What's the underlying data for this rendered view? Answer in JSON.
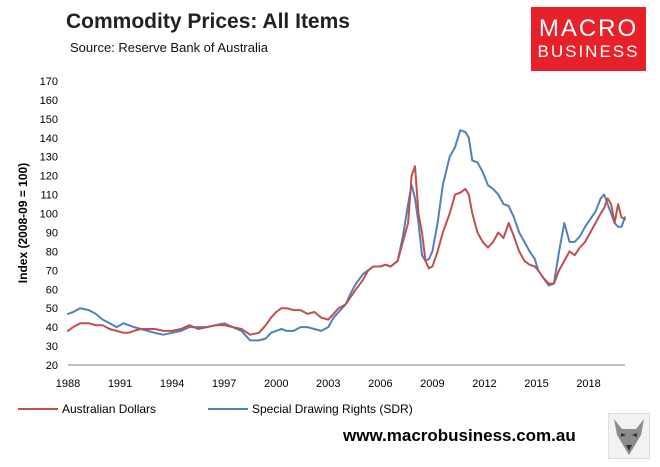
{
  "header": {
    "title": "Commodity Prices: All Items",
    "subtitle": "Source: Reserve Bank of Australia"
  },
  "logo": {
    "line1": "MACRO",
    "line2": "BUSINESS",
    "color": "#e8202a"
  },
  "footer": {
    "website": "www.macrobusiness.com.au"
  },
  "chart_data": {
    "type": "line",
    "title": "Commodity Prices: All Items",
    "ylabel": "Index (2008-09 = 100)",
    "xlabel": "",
    "xlim": [
      1988,
      2020.1
    ],
    "ylim": [
      20,
      170
    ],
    "y_ticks": [
      20,
      30,
      40,
      50,
      60,
      70,
      80,
      90,
      100,
      110,
      120,
      130,
      140,
      150,
      160,
      170
    ],
    "x_ticks": [
      1988,
      1991,
      1994,
      1997,
      2000,
      2003,
      2006,
      2009,
      2012,
      2015,
      2018
    ],
    "x_tick_labels": [
      "1988",
      "1991",
      "1994",
      "1997",
      "2000",
      "2003",
      "2006",
      "2009",
      "2012",
      "2015",
      "2018"
    ],
    "grid": false,
    "legend_position": "bottom-left",
    "series": [
      {
        "name": "Australian Dollars",
        "color": "#c0504d",
        "x": [
          1988,
          1988.3,
          1988.7,
          1989.2,
          1989.6,
          1990,
          1990.4,
          1990.8,
          1991.2,
          1991.5,
          1991.8,
          1992.2,
          1992.6,
          1993,
          1993.5,
          1994,
          1994.5,
          1995,
          1995.5,
          1996,
          1996.5,
          1997,
          1997.5,
          1998,
          1998.5,
          1999,
          1999.4,
          1999.7,
          2000,
          2000.3,
          2000.6,
          2001,
          2001.4,
          2001.8,
          2002.2,
          2002.6,
          2003,
          2003.3,
          2003.6,
          2004,
          2004.3,
          2004.6,
          2005,
          2005.3,
          2005.6,
          2006,
          2006.3,
          2006.6,
          2007,
          2007.3,
          2007.6,
          2007.8,
          2008,
          2008.2,
          2008.4,
          2008.6,
          2008.8,
          2009,
          2009.3,
          2009.6,
          2010,
          2010.3,
          2010.6,
          2010.9,
          2011.1,
          2011.3,
          2011.6,
          2011.9,
          2012.2,
          2012.5,
          2012.8,
          2013.1,
          2013.4,
          2013.7,
          2014,
          2014.3,
          2014.6,
          2014.9,
          2015.1,
          2015.4,
          2015.7,
          2016,
          2016.3,
          2016.6,
          2016.9,
          2017.2,
          2017.5,
          2017.8,
          2018.1,
          2018.4,
          2018.7,
          2018.9,
          2019.1,
          2019.3,
          2019.5,
          2019.7,
          2019.9,
          2020.1
        ],
        "values": [
          38,
          40,
          42,
          42,
          41,
          41,
          39,
          38,
          37,
          37,
          38,
          39,
          39,
          39,
          38,
          38,
          39,
          41,
          39,
          40,
          41,
          41,
          40,
          39,
          36,
          37,
          41,
          45,
          48,
          50,
          50,
          49,
          49,
          47,
          48,
          45,
          44,
          47,
          50,
          52,
          56,
          60,
          65,
          70,
          72,
          72,
          73,
          72,
          75,
          85,
          95,
          120,
          125,
          100,
          90,
          75,
          71,
          72,
          80,
          90,
          100,
          110,
          111,
          113,
          110,
          100,
          90,
          85,
          82,
          85,
          90,
          87,
          95,
          88,
          80,
          75,
          73,
          72,
          70,
          66,
          63,
          63,
          70,
          75,
          80,
          78,
          82,
          85,
          90,
          95,
          100,
          103,
          108,
          105,
          95,
          105,
          98,
          97
        ]
      },
      {
        "name": "Special Drawing Rights (SDR)",
        "color": "#4f81bd",
        "x": [
          1988,
          1988.3,
          1988.7,
          1989.2,
          1989.6,
          1990,
          1990.4,
          1990.8,
          1991.2,
          1991.5,
          1991.8,
          1992.2,
          1992.6,
          1993,
          1993.5,
          1994,
          1994.5,
          1995,
          1995.5,
          1996,
          1996.5,
          1997,
          1997.5,
          1998,
          1998.5,
          1999,
          1999.4,
          1999.7,
          2000,
          2000.3,
          2000.6,
          2001,
          2001.4,
          2001.8,
          2002.2,
          2002.6,
          2003,
          2003.3,
          2003.6,
          2004,
          2004.3,
          2004.6,
          2005,
          2005.3,
          2005.6,
          2006,
          2006.3,
          2006.6,
          2007,
          2007.3,
          2007.6,
          2007.8,
          2008,
          2008.2,
          2008.4,
          2008.6,
          2008.8,
          2009,
          2009.3,
          2009.6,
          2010,
          2010.3,
          2010.6,
          2010.9,
          2011.1,
          2011.3,
          2011.6,
          2011.9,
          2012.2,
          2012.5,
          2012.8,
          2013.1,
          2013.4,
          2013.7,
          2014,
          2014.3,
          2014.6,
          2014.9,
          2015.1,
          2015.4,
          2015.7,
          2016,
          2016.3,
          2016.6,
          2016.9,
          2017.2,
          2017.5,
          2017.8,
          2018.1,
          2018.4,
          2018.7,
          2018.9,
          2019.1,
          2019.3,
          2019.5,
          2019.7,
          2019.9,
          2020.1
        ],
        "values": [
          47,
          48,
          50,
          49,
          47,
          44,
          42,
          40,
          42,
          41,
          40,
          39,
          38,
          37,
          36,
          37,
          38,
          40,
          40,
          40,
          41,
          42,
          40,
          38,
          33,
          33,
          34,
          37,
          38,
          39,
          38,
          38,
          40,
          40,
          39,
          38,
          40,
          45,
          48,
          52,
          58,
          63,
          68,
          70,
          72,
          72,
          73,
          72,
          75,
          88,
          105,
          115,
          108,
          95,
          78,
          75,
          76,
          80,
          95,
          115,
          130,
          135,
          144,
          143,
          140,
          128,
          127,
          122,
          115,
          113,
          110,
          105,
          104,
          98,
          90,
          85,
          80,
          76,
          70,
          66,
          62,
          63,
          80,
          95,
          85,
          85,
          88,
          93,
          97,
          101,
          108,
          110,
          105,
          100,
          95,
          93,
          93,
          98
        ]
      }
    ]
  }
}
